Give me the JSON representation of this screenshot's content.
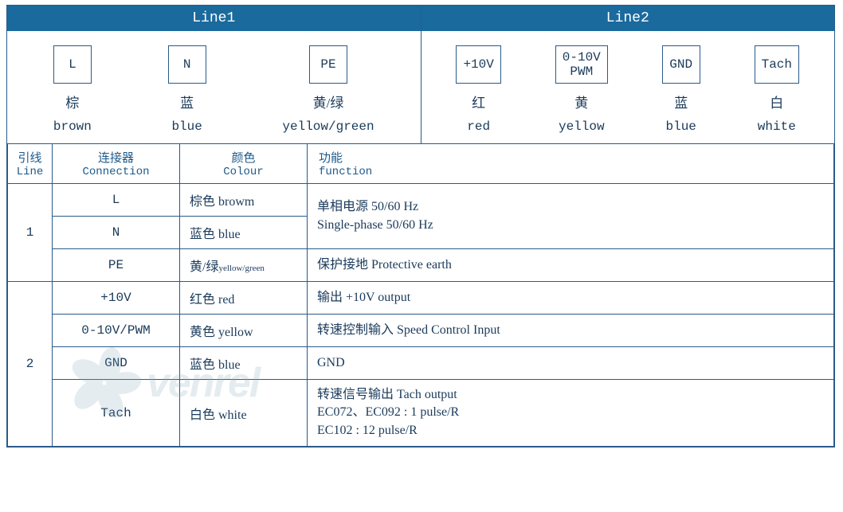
{
  "colors": {
    "header_bg": "#1a6a9e",
    "header_fg": "#ffffff",
    "border": "#2a5a8a",
    "text": "#1a3a5a",
    "th_text": "#1e5a8a",
    "watermark": "#88aac0"
  },
  "top": {
    "line1": {
      "title": "Line1",
      "terminals": [
        {
          "box": "L",
          "cn": "棕",
          "en": "brown"
        },
        {
          "box": "N",
          "cn": "蓝",
          "en": "blue"
        },
        {
          "box": "PE",
          "cn": "黄/绿",
          "en": "yellow/green"
        }
      ]
    },
    "line2": {
      "title": "Line2",
      "terminals": [
        {
          "box": "+10V",
          "cn": "红",
          "en": "red"
        },
        {
          "box": "0-10V\nPWM",
          "cn": "黄",
          "en": "yellow"
        },
        {
          "box": "GND",
          "cn": "蓝",
          "en": "blue"
        },
        {
          "box": "Tach",
          "cn": "白",
          "en": "white"
        }
      ]
    }
  },
  "table": {
    "headers": {
      "line": {
        "cn": "引线",
        "en": "Line"
      },
      "conn": {
        "cn": "连接器",
        "en": "Connection"
      },
      "colour": {
        "cn": "颜色",
        "en": "Colour"
      },
      "func": {
        "cn": "功能",
        "en": "function"
      }
    },
    "groups": [
      {
        "line": "1",
        "rows": [
          {
            "conn": "L",
            "colour_cn": "棕色",
            "colour_en": "browm",
            "func": "单相电源 50/60 Hz\nSingle-phase 50/60 Hz",
            "func_rowspan": 2
          },
          {
            "conn": "N",
            "colour_cn": "蓝色",
            "colour_en": "blue"
          },
          {
            "conn": "PE",
            "colour_cn": "黄/绿",
            "colour_en": "yellow/green",
            "colour_small_en": true,
            "func": "保护接地 Protective earth"
          }
        ]
      },
      {
        "line": "2",
        "rows": [
          {
            "conn": "+10V",
            "colour_cn": "红色",
            "colour_en": "red",
            "func": "输出 +10V output"
          },
          {
            "conn": "0-10V/PWM",
            "colour_cn": "黄色",
            "colour_en": "yellow",
            "func": "转速控制输入 Speed Control Input"
          },
          {
            "conn": "GND",
            "colour_cn": "蓝色",
            "colour_en": "blue",
            "func": " GND"
          },
          {
            "conn": "Tach",
            "colour_cn": "白色",
            "colour_en": "white",
            "func": "转速信号输出 Tach output\nEC072、EC092 : 1 pulse/R\nEC102 : 12 pulse/R"
          }
        ]
      }
    ]
  },
  "watermark_text": "venrel"
}
